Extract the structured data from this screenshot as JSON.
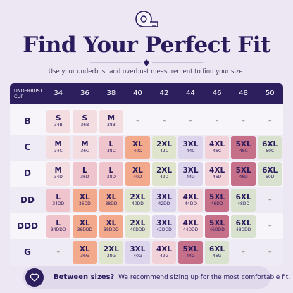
{
  "header": {
    "title": "Find Your Perfect Fit",
    "subtitle": "Use your underbust and overbust measurement to find your size."
  },
  "size_colors": {
    "S": "#f3dde1",
    "M": "#f3dde1",
    "L": "#f0c4cc",
    "XL": "#f2a98c",
    "2XL": "#dfe5cc",
    "3XL": "#dcd5eb",
    "4XL": "#f2d2d9",
    "5XL": "#c66f88",
    "6XL": "#d8e2cf"
  },
  "table": {
    "corner": [
      "UNDERBUST",
      "CUP"
    ],
    "columns": [
      "34",
      "36",
      "38",
      "40",
      "42",
      "44",
      "46",
      "48",
      "50"
    ],
    "rows": [
      {
        "cup": "B",
        "cells": [
          {
            "size": "S",
            "code": "34B"
          },
          {
            "size": "S",
            "code": "36B"
          },
          {
            "size": "M",
            "code": "38B"
          },
          "–",
          "–",
          "–",
          "–",
          "–",
          "–"
        ]
      },
      {
        "cup": "C",
        "cells": [
          {
            "size": "M",
            "code": "34C"
          },
          {
            "size": "M",
            "code": "36C"
          },
          {
            "size": "L",
            "code": "38C"
          },
          {
            "size": "XL",
            "code": "40C"
          },
          {
            "size": "2XL",
            "code": "42C"
          },
          {
            "size": "3XL",
            "code": "44C"
          },
          {
            "size": "4XL",
            "code": "46C"
          },
          {
            "size": "5XL",
            "code": "48C"
          },
          {
            "size": "6XL",
            "code": "50C"
          }
        ]
      },
      {
        "cup": "D",
        "cells": [
          {
            "size": "M",
            "code": "34D"
          },
          {
            "size": "L",
            "code": "36D"
          },
          {
            "size": "L",
            "code": "38D"
          },
          {
            "size": "XL",
            "code": "40D"
          },
          {
            "size": "2XL",
            "code": "42D"
          },
          {
            "size": "3XL",
            "code": "44D"
          },
          {
            "size": "4XL",
            "code": "46D"
          },
          {
            "size": "5XL",
            "code": "48D"
          },
          {
            "size": "6XL",
            "code": "50D"
          }
        ]
      },
      {
        "cup": "DD",
        "cells": [
          {
            "size": "L",
            "code": "34DD"
          },
          {
            "size": "XL",
            "code": "36DD"
          },
          {
            "size": "XL",
            "code": "38DD"
          },
          {
            "size": "2XL",
            "code": "40DD"
          },
          {
            "size": "3XL",
            "code": "42DD"
          },
          {
            "size": "4XL",
            "code": "44DD"
          },
          {
            "size": "5XL",
            "code": "46DD"
          },
          {
            "size": "6XL",
            "code": "48DD"
          },
          "–"
        ]
      },
      {
        "cup": "DDD",
        "cells": [
          {
            "size": "L",
            "code": "34DDD"
          },
          {
            "size": "XL",
            "code": "36DDD"
          },
          {
            "size": "XL",
            "code": "38DDD"
          },
          {
            "size": "2XL",
            "code": "40DDD"
          },
          {
            "size": "3XL",
            "code": "42DDD"
          },
          {
            "size": "4XL",
            "code": "44DDD"
          },
          {
            "size": "5XL",
            "code": "46DDD"
          },
          {
            "size": "6XL",
            "code": "48DDD"
          },
          "–"
        ]
      },
      {
        "cup": "G",
        "cells": [
          "–",
          {
            "size": "XL",
            "code": "36G"
          },
          {
            "size": "2XL",
            "code": "38G"
          },
          {
            "size": "3XL",
            "code": "40G"
          },
          {
            "size": "4XL",
            "code": "42G"
          },
          {
            "size": "5XL",
            "code": "44G"
          },
          {
            "size": "6XL",
            "code": "46G"
          },
          "–",
          "–"
        ]
      }
    ]
  },
  "footer": {
    "bold": "Between sizes?",
    "text": "We recommend sizing up for the most comfortable fit."
  }
}
